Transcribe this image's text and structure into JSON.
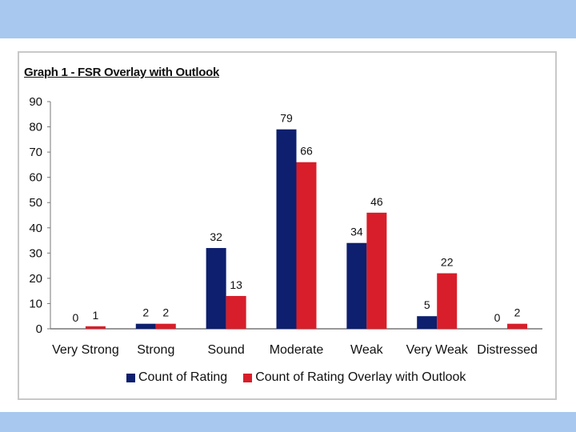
{
  "chart_data": {
    "type": "bar",
    "title": "Graph 1 - FSR Overlay with Outlook",
    "categories": [
      "Very Strong",
      "Strong",
      "Sound",
      "Moderate",
      "Weak",
      "Very Weak",
      "Distressed"
    ],
    "series": [
      {
        "name": "Count of Rating",
        "values": [
          0,
          2,
          32,
          79,
          34,
          5,
          0
        ],
        "color": "#0d1f6e"
      },
      {
        "name": "Count of Rating Overlay with Outlook",
        "values": [
          1,
          2,
          13,
          66,
          46,
          22,
          2
        ],
        "color": "#d81e2a"
      }
    ],
    "ylim": [
      0,
      90
    ],
    "yticks": [
      0,
      10,
      20,
      30,
      40,
      50,
      60,
      70,
      80,
      90
    ],
    "grid": false,
    "legend": "bottom"
  },
  "colors": {
    "band": "#a8c8f0",
    "frame_border": "#c8c8c8"
  }
}
